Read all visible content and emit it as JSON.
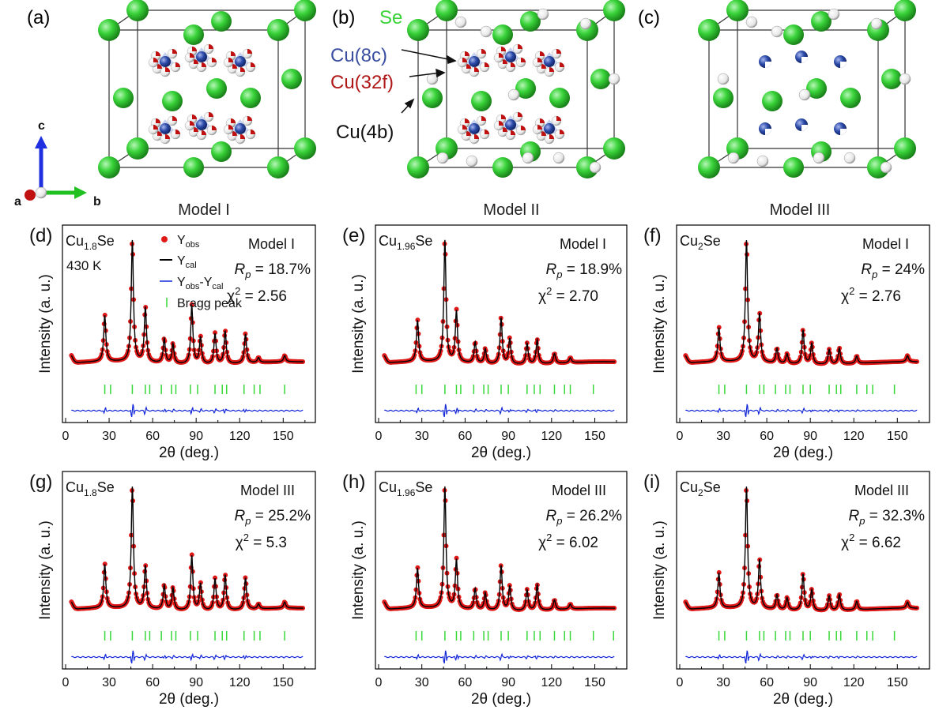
{
  "colors": {
    "se": "#39d339",
    "cu8c": "#2b4aa8",
    "cu32f": "#c01010",
    "cu4b": "#ffffff",
    "yobs": "#e01818",
    "ycal": "#000000",
    "diff": "#1428d8",
    "bragg": "#38d838",
    "axis_c": "#2030e0",
    "axis_b": "#20c020",
    "axis_a": "#c01010"
  },
  "structures": {
    "panels": [
      {
        "tag": "(a)",
        "caption": "Model I"
      },
      {
        "tag": "(b)",
        "caption": "Model II"
      },
      {
        "tag": "(c)",
        "caption": "Model III"
      }
    ],
    "legend": {
      "se": "Se",
      "cu8c": "Cu(8c)",
      "cu32f": "Cu(32f)",
      "cu4b": "Cu(4b)"
    },
    "axes": {
      "c": "c",
      "a": "a",
      "b": "b"
    }
  },
  "xrd_legend": {
    "yobs": "Y",
    "yobs_sub": "obs",
    "ycal": "Y",
    "ycal_sub": "cal",
    "diff_a": "Y",
    "diff_a_sub": "obs",
    "diff_dash": "-Y",
    "diff_b_sub": "cal",
    "bragg": "Bragg peak",
    "temperature": "430 K"
  },
  "chart_data": [
    {
      "tag": "(d)",
      "type": "line",
      "sample": "Cu",
      "sample_sub": "1.8",
      "sample_tail": "Se",
      "model": "Model I",
      "rp": "18.7%",
      "chi2": "2.56",
      "xlabel": "2θ (deg.)",
      "ylabel": "Intensity (a. u.)",
      "xticks": [
        0,
        30,
        60,
        90,
        120,
        150
      ],
      "xlim": [
        0,
        170
      ],
      "peaks": [
        [
          27,
          0.38
        ],
        [
          46,
          1.0
        ],
        [
          55,
          0.45
        ],
        [
          68,
          0.2
        ],
        [
          74,
          0.16
        ],
        [
          87,
          0.48
        ],
        [
          93,
          0.22
        ],
        [
          103,
          0.25
        ],
        [
          110,
          0.27
        ],
        [
          124,
          0.24
        ],
        [
          133,
          0.04
        ],
        [
          151,
          0.05
        ]
      ],
      "bragg": [
        27,
        31,
        46,
        55,
        58,
        66,
        73,
        76,
        86,
        91,
        103,
        108,
        111,
        123,
        130,
        134,
        151
      ]
    },
    {
      "tag": "(e)",
      "type": "line",
      "sample": "Cu",
      "sample_sub": "1.96",
      "sample_tail": "Se",
      "model": "Model I",
      "rp": "18.9%",
      "chi2": "2.70",
      "xlabel": "2θ (deg.)",
      "ylabel": "Intensity (a. u.)",
      "xticks": [
        0,
        30,
        60,
        90,
        120,
        150
      ],
      "xlim": [
        0,
        170
      ],
      "peaks": [
        [
          27,
          0.34
        ],
        [
          46,
          1.0
        ],
        [
          54,
          0.42
        ],
        [
          67,
          0.17
        ],
        [
          74,
          0.12
        ],
        [
          85,
          0.38
        ],
        [
          91,
          0.21
        ],
        [
          103,
          0.17
        ],
        [
          110,
          0.2
        ],
        [
          122,
          0.08
        ],
        [
          133,
          0.04
        ]
      ],
      "bragg": [
        26,
        30,
        46,
        54,
        57,
        66,
        73,
        76,
        85,
        90,
        103,
        108,
        112,
        122,
        129,
        133,
        149
      ]
    },
    {
      "tag": "(f)",
      "type": "line",
      "sample": "Cu",
      "sample_sub": "2",
      "sample_tail": "Se",
      "model": "Model I",
      "rp": "24%",
      "chi2": "2.76",
      "xlabel": "2θ (deg.)",
      "ylabel": "Intensity (a. u.)",
      "xticks": [
        0,
        30,
        60,
        90,
        120,
        150
      ],
      "xlim": [
        0,
        170
      ],
      "peaks": [
        [
          27,
          0.28
        ],
        [
          46,
          1.0
        ],
        [
          55,
          0.4
        ],
        [
          67,
          0.12
        ],
        [
          74,
          0.08
        ],
        [
          85,
          0.28
        ],
        [
          91,
          0.17
        ],
        [
          103,
          0.12
        ],
        [
          110,
          0.13
        ],
        [
          122,
          0.06
        ],
        [
          157,
          0.05
        ]
      ],
      "bragg": [
        27,
        31,
        46,
        55,
        58,
        66,
        73,
        76,
        85,
        90,
        103,
        108,
        111,
        122,
        129,
        133,
        148
      ]
    },
    {
      "tag": "(g)",
      "type": "line",
      "sample": "Cu",
      "sample_sub": "1.8",
      "sample_tail": "Se",
      "model": "Model III",
      "rp": "25.2%",
      "chi2": "5.3",
      "xlabel": "2θ (deg.)",
      "ylabel": "Intensity (a. u.)",
      "xticks": [
        0,
        30,
        60,
        90,
        120,
        150
      ],
      "xlim": [
        0,
        170
      ],
      "peaks": [
        [
          27,
          0.36
        ],
        [
          46,
          1.0
        ],
        [
          55,
          0.35
        ],
        [
          68,
          0.2
        ],
        [
          74,
          0.18
        ],
        [
          87,
          0.45
        ],
        [
          93,
          0.22
        ],
        [
          103,
          0.26
        ],
        [
          110,
          0.29
        ],
        [
          124,
          0.26
        ],
        [
          133,
          0.04
        ],
        [
          151,
          0.05
        ]
      ],
      "bragg": [
        27,
        31,
        46,
        55,
        58,
        66,
        73,
        76,
        86,
        91,
        103,
        108,
        111,
        123,
        130,
        134,
        151
      ]
    },
    {
      "tag": "(h)",
      "type": "line",
      "sample": "Cu",
      "sample_sub": "1.96",
      "sample_tail": "Se",
      "model": "Model III",
      "rp": "26.2%",
      "chi2": "6.02",
      "xlabel": "2θ (deg.)",
      "ylabel": "Intensity (a. u.)",
      "xticks": [
        0,
        30,
        60,
        90,
        120,
        150
      ],
      "xlim": [
        0,
        170
      ],
      "peaks": [
        [
          27,
          0.33
        ],
        [
          46,
          1.0
        ],
        [
          54,
          0.4
        ],
        [
          67,
          0.17
        ],
        [
          74,
          0.14
        ],
        [
          85,
          0.37
        ],
        [
          91,
          0.2
        ],
        [
          103,
          0.17
        ],
        [
          110,
          0.21
        ],
        [
          122,
          0.08
        ],
        [
          133,
          0.04
        ]
      ],
      "bragg": [
        26,
        30,
        46,
        54,
        57,
        66,
        73,
        76,
        85,
        90,
        103,
        108,
        112,
        122,
        129,
        133,
        149,
        163
      ]
    },
    {
      "tag": "(i)",
      "type": "line",
      "sample": "Cu",
      "sample_sub": "2",
      "sample_tail": "Se",
      "model": "Model III",
      "rp": "32.3%",
      "chi2": "6.62",
      "xlabel": "2θ (deg.)",
      "ylabel": "Intensity (a. u.)",
      "xticks": [
        0,
        30,
        60,
        90,
        120,
        150
      ],
      "xlim": [
        0,
        170
      ],
      "peaks": [
        [
          27,
          0.29
        ],
        [
          46,
          1.0
        ],
        [
          55,
          0.4
        ],
        [
          67,
          0.12
        ],
        [
          74,
          0.1
        ],
        [
          85,
          0.3
        ],
        [
          91,
          0.17
        ],
        [
          103,
          0.12
        ],
        [
          110,
          0.13
        ],
        [
          122,
          0.07
        ],
        [
          157,
          0.05
        ]
      ],
      "bragg": [
        27,
        31,
        46,
        55,
        58,
        66,
        73,
        76,
        85,
        90,
        103,
        108,
        111,
        122,
        129,
        133,
        148
      ]
    }
  ]
}
